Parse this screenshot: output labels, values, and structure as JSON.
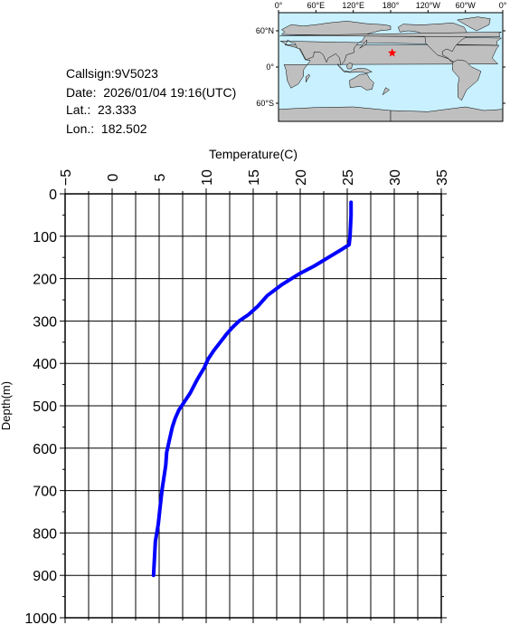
{
  "info": {
    "callsign": "Callsign:9V5023",
    "date": "Date:  2026/01/04 19:16(UTC)",
    "lat": "Lat.:  23.333",
    "lon": "Lon.:  182.502"
  },
  "map": {
    "top_labels": [
      "0°",
      "60°E",
      "120°E",
      "180°",
      "120°W",
      "60°W",
      "0°"
    ],
    "lat_labels": [
      "60°N",
      "0°",
      "60°S"
    ],
    "marker_lat": 23.333,
    "marker_lon": 182.502,
    "marker_color": "#ff0000",
    "ocean_color": "#c8f0ff",
    "land_color": "#bfbfbf"
  },
  "chart_data": {
    "type": "line",
    "xlabel": "Temperature(C)",
    "ylabel": "Depth(m)",
    "xlim": [
      -5,
      35
    ],
    "ylim": [
      0,
      1000
    ],
    "y_inverted": true,
    "grid": true,
    "x_ticks": [
      -5,
      0,
      5,
      10,
      15,
      20,
      25,
      30,
      35
    ],
    "y_ticks": [
      0,
      100,
      200,
      300,
      400,
      500,
      600,
      700,
      800,
      900,
      1000
    ],
    "line_color": "#0000ff",
    "series": [
      {
        "x": [
          25.4,
          25.4,
          25.3,
          25.2,
          24.5,
          23.0,
          21.5,
          19.8,
          18.0,
          16.5,
          15.5,
          14.5,
          13.5,
          12.8,
          12.2,
          11.5,
          10.8,
          10.2,
          9.8,
          9.0,
          8.3,
          7.7,
          7.1,
          6.7,
          6.4,
          6.1,
          5.8,
          5.7,
          5.5,
          5.3,
          5.1,
          4.9,
          4.6,
          4.5,
          4.4
        ],
        "y": [
          20,
          50,
          100,
          120,
          130,
          150,
          170,
          190,
          215,
          240,
          265,
          285,
          300,
          315,
          330,
          350,
          370,
          390,
          410,
          440,
          470,
          490,
          510,
          530,
          550,
          580,
          610,
          640,
          670,
          700,
          740,
          780,
          820,
          860,
          900
        ]
      }
    ]
  }
}
